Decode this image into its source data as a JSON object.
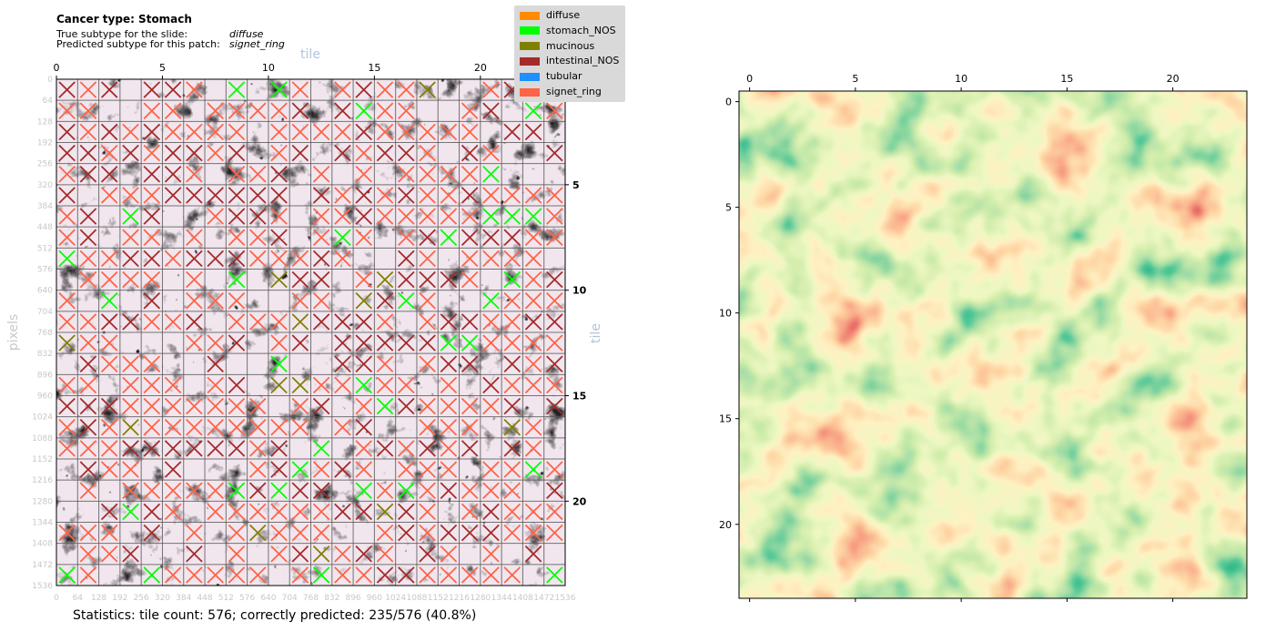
{
  "header": {
    "cancer_type": "Cancer type: Stomach",
    "true_label": "True subtype for the slide:",
    "true_value": "diffuse",
    "pred_label": "Predicted subtype for this patch:",
    "pred_value": "signet_ring"
  },
  "legend": [
    {
      "label": "diffuse",
      "color": "#ff8c00"
    },
    {
      "label": "stomach_NOS",
      "color": "#00ff00"
    },
    {
      "label": "mucinous",
      "color": "#808000"
    },
    {
      "label": "intestinal_NOS",
      "color": "#a52a2a"
    },
    {
      "label": "tubular",
      "color": "#1e90ff"
    },
    {
      "label": "signet_ring",
      "color": "#ff6347"
    }
  ],
  "stats_text": "Statistics: tile count: 576; correctly predicted: 235/576 (40.8%)",
  "chart_data": [
    {
      "type": "heatmap",
      "description_of_content": "histology patch with 24x24 tile grid overlay; each tile marked with an X colored by predicted subtype",
      "grid": [
        24,
        24
      ],
      "top_axis_label": "tile",
      "right_axis_label": "tile",
      "left_axis_label": "pixels",
      "top_ticks": [
        "0",
        "5",
        "10",
        "15",
        "20"
      ],
      "right_ticks": [
        "5",
        "10",
        "15",
        "20"
      ],
      "pixel_ticks": [
        "0",
        "64",
        "128",
        "192",
        "256",
        "320",
        "384",
        "448",
        "512",
        "576",
        "640",
        "704",
        "768",
        "832",
        "896",
        "960",
        "1024",
        "1088",
        "1152",
        "1216",
        "1280",
        "1344",
        "1408",
        "1472",
        "1536"
      ],
      "tile_count": 576,
      "correctly_predicted": 235,
      "accuracy_percent": 40.8
    },
    {
      "type": "heatmap",
      "description_of_content": "smoothed prediction heatmap (RdYlGn colormap), 24x24 tiles",
      "x_ticks": [
        "0",
        "5",
        "10",
        "15",
        "20"
      ],
      "y_ticks": [
        "0",
        "5",
        "10",
        "15",
        "20"
      ],
      "colormap": [
        "#a50026",
        "#d73027",
        "#f46d43",
        "#fdae61",
        "#fee08b",
        "#d9ef8b",
        "#a6d96a",
        "#66bd63",
        "#1a9850",
        "#006837"
      ]
    }
  ]
}
